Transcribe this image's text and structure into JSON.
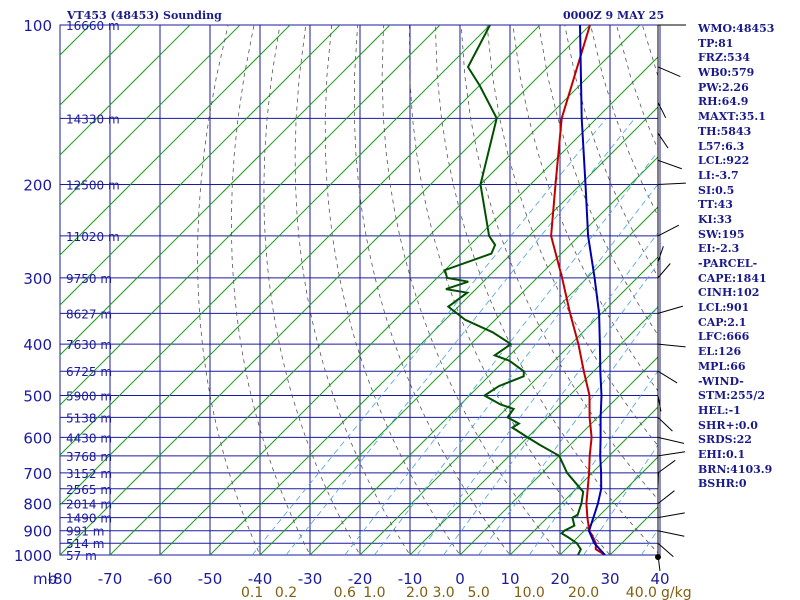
{
  "header": {
    "title": "VT453 (48453) Sounding",
    "time": "0000Z  9 MAY 25"
  },
  "colors": {
    "grid": "#1a1aa0",
    "label": "#1a1aa0",
    "isotherm": "#1aa01a",
    "dry_adiabat": "#555555",
    "mixing_ratio": "#4aa0e0",
    "temperature": "#c00000",
    "dewpoint": "#005000",
    "parcel": "#0000b0",
    "mixing_label": "#806010",
    "wind": "#000000"
  },
  "chart_data": {
    "type": "skew-t",
    "pressure_unit": "mb",
    "y_ticks": [
      100,
      200,
      300,
      400,
      500,
      600,
      700,
      800,
      900,
      1000
    ],
    "x_ticks": [
      -80,
      -70,
      -60,
      -50,
      -40,
      -30,
      -20,
      -10,
      0,
      10,
      20,
      30,
      40
    ],
    "xlim": [
      -80,
      40
    ],
    "ylim": [
      1000,
      100
    ],
    "height_labels": [
      {
        "p": 100,
        "label": "16660 m"
      },
      {
        "p": 150,
        "label": "14330 m"
      },
      {
        "p": 200,
        "label": "12500 m"
      },
      {
        "p": 250,
        "label": "11020 m"
      },
      {
        "p": 300,
        "label": "9750 m"
      },
      {
        "p": 350,
        "label": "8627 m"
      },
      {
        "p": 400,
        "label": "7630 m"
      },
      {
        "p": 450,
        "label": "6725 m"
      },
      {
        "p": 500,
        "label": "5900 m"
      },
      {
        "p": 550,
        "label": "5138 m"
      },
      {
        "p": 600,
        "label": "4430 m"
      },
      {
        "p": 650,
        "label": "3768 m"
      },
      {
        "p": 700,
        "label": "3152 m"
      },
      {
        "p": 750,
        "label": "2565 m"
      },
      {
        "p": 800,
        "label": "2014 m"
      },
      {
        "p": 850,
        "label": "1490 m"
      },
      {
        "p": 900,
        "label": "991 m"
      },
      {
        "p": 950,
        "label": "514 m"
      },
      {
        "p": 1000,
        "label": "57 m"
      }
    ],
    "mixing_ratio_labels": [
      "0.1",
      "0.2",
      "0.6",
      "1.0",
      "2.0",
      "3.0",
      "5.0",
      "10.0",
      "20.0",
      "40.0"
    ],
    "mixing_ratio_values": [
      0.1,
      0.2,
      0.6,
      1.0,
      2.0,
      3.0,
      5.0,
      10.0,
      20.0,
      40.0
    ],
    "mixing_ratio_unit": "g/kg",
    "series": [
      {
        "name": "Temperature",
        "points": [
          [
            1000,
            29
          ],
          [
            975,
            26
          ],
          [
            950,
            24.8
          ],
          [
            925,
            23
          ],
          [
            900,
            21
          ],
          [
            850,
            18
          ],
          [
            800,
            15
          ],
          [
            700,
            9.4
          ],
          [
            650,
            6.1
          ],
          [
            600,
            2.8
          ],
          [
            550,
            -1.6
          ],
          [
            500,
            -6
          ],
          [
            450,
            -12
          ],
          [
            400,
            -18.5
          ],
          [
            350,
            -26.3
          ],
          [
            300,
            -35
          ],
          [
            250,
            -45.6
          ],
          [
            200,
            -55
          ],
          [
            150,
            -67
          ],
          [
            100,
            -80
          ]
        ]
      },
      {
        "name": "Dewpoint",
        "points": [
          [
            1000,
            23.6
          ],
          [
            975,
            23
          ],
          [
            950,
            21
          ],
          [
            925,
            18
          ],
          [
            910,
            16
          ],
          [
            900,
            16
          ],
          [
            880,
            17
          ],
          [
            850,
            15
          ],
          [
            840,
            15.5
          ],
          [
            800,
            14
          ],
          [
            760,
            12
          ],
          [
            700,
            5
          ],
          [
            650,
            0
          ],
          [
            620,
            -6
          ],
          [
            600,
            -10
          ],
          [
            575,
            -15
          ],
          [
            565,
            -14.5
          ],
          [
            550,
            -18
          ],
          [
            530,
            -18.5
          ],
          [
            520,
            -22
          ],
          [
            500,
            -27
          ],
          [
            480,
            -26
          ],
          [
            460,
            -23
          ],
          [
            450,
            -24
          ],
          [
            430,
            -29
          ],
          [
            420,
            -33
          ],
          [
            400,
            -32
          ],
          [
            380,
            -38
          ],
          [
            360,
            -46
          ],
          [
            340,
            -52
          ],
          [
            320,
            -51
          ],
          [
            315,
            -56
          ],
          [
            305,
            -53
          ],
          [
            300,
            -58
          ],
          [
            290,
            -60
          ],
          [
            270,
            -54
          ],
          [
            260,
            -55
          ],
          [
            250,
            -58
          ],
          [
            200,
            -70
          ],
          [
            150,
            -80
          ],
          [
            130,
            -90
          ],
          [
            120,
            -96
          ],
          [
            100,
            -100
          ]
        ]
      },
      {
        "name": "Parcel",
        "points": [
          [
            1000,
            29
          ],
          [
            950,
            24.5
          ],
          [
            901,
            21
          ],
          [
            850,
            19.2
          ],
          [
            800,
            17.3
          ],
          [
            750,
            15
          ],
          [
            700,
            11.8
          ],
          [
            650,
            8.2
          ],
          [
            600,
            4.6
          ],
          [
            550,
            0.6
          ],
          [
            500,
            -3.6
          ],
          [
            450,
            -8.7
          ],
          [
            400,
            -14.2
          ],
          [
            350,
            -20.5
          ],
          [
            300,
            -28.5
          ],
          [
            250,
            -38.2
          ],
          [
            200,
            -49
          ],
          [
            150,
            -63
          ],
          [
            100,
            -82
          ]
        ]
      }
    ],
    "wind_pressures": [
      100,
      120,
      140,
      160,
      180,
      200,
      250,
      280,
      300,
      350,
      400,
      450,
      500,
      550,
      600,
      650,
      700,
      750,
      800,
      850,
      900,
      950,
      1000
    ]
  },
  "indices": [
    "WMO:48453",
    "TP:81",
    "FRZ:534",
    "WB0:579",
    "PW:2.26",
    "RH:64.9",
    "MAXT:35.1",
    "TH:5843",
    "L57:6.3",
    "LCL:922",
    "LI:-3.7",
    "SI:0.5",
    "TT:43",
    "KI:33",
    "SW:195",
    "EI:-2.3",
    "-PARCEL-",
    "CAPE:1841",
    "CINH:102",
    "LCL:901",
    "CAP:2.1",
    "LFC:666",
    "EL:126",
    "MPL:66",
    "-WIND-",
    "STM:255/2",
    "HEL:-1",
    "SHR+:0.0",
    "SRDS:22",
    "EHI:0.1",
    "BRN:4103.9",
    "BSHR:0"
  ]
}
